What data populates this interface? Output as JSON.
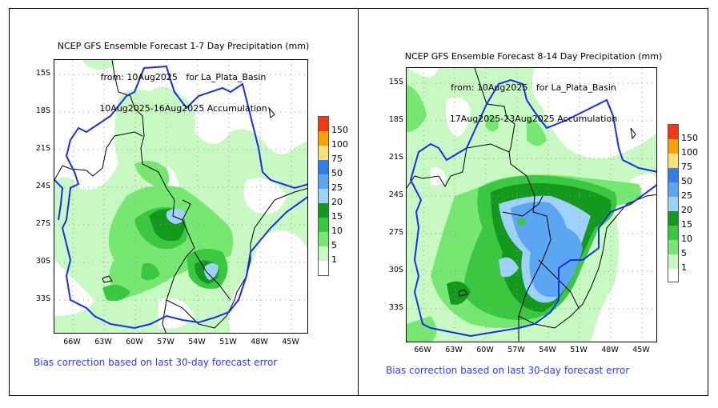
{
  "panels": [
    {
      "id": "week1",
      "title_lines": [
        "NCEP GFS Ensemble Forecast 1-7 Day Precipitation (mm)",
        "from: 10Aug2025   for La_Plata_Basin",
        "10Aug2025-16Aug2025 Accumulation"
      ],
      "y_ticks": [
        "15S",
        "18S",
        "21S",
        "24S",
        "27S",
        "30S",
        "33S"
      ],
      "x_ticks": [
        "66W",
        "63W",
        "60W",
        "57W",
        "54W",
        "51W",
        "48W",
        "45W"
      ],
      "footnote": "Bias correction based on last 30-day forecast error"
    },
    {
      "id": "week2",
      "title_lines": [
        "NCEP GFS Ensemble Forecast 8-14 Day Precipitation (mm)",
        "from: 10Aug2025   for La_Plata_Basin",
        "17Aug2025-23Aug2025 Accumulation"
      ],
      "y_ticks": [
        "15S",
        "18S",
        "21S",
        "24S",
        "27S",
        "30S",
        "33S"
      ],
      "x_ticks": [
        "66W",
        "63W",
        "60W",
        "57W",
        "54W",
        "51W",
        "48W",
        "45W"
      ],
      "footnote": "Bias correction based on last 30-day forecast error"
    }
  ],
  "colorbar": {
    "labels": [
      "150",
      "100",
      "75",
      "50",
      "25",
      "20",
      "15",
      "10",
      "5",
      "1"
    ],
    "colors": [
      "#f23a10",
      "#fba200",
      "#fde07a",
      "#2f7eec",
      "#5aa6f2",
      "#9fd2fa",
      "#139a1c",
      "#3ac840",
      "#76e872",
      "#c8f9c2",
      "#ffffff"
    ]
  },
  "colors": {
    "basin_outline": "#1a2cf0",
    "country_border": "#000000",
    "footnote_text": "#2b3bff"
  }
}
